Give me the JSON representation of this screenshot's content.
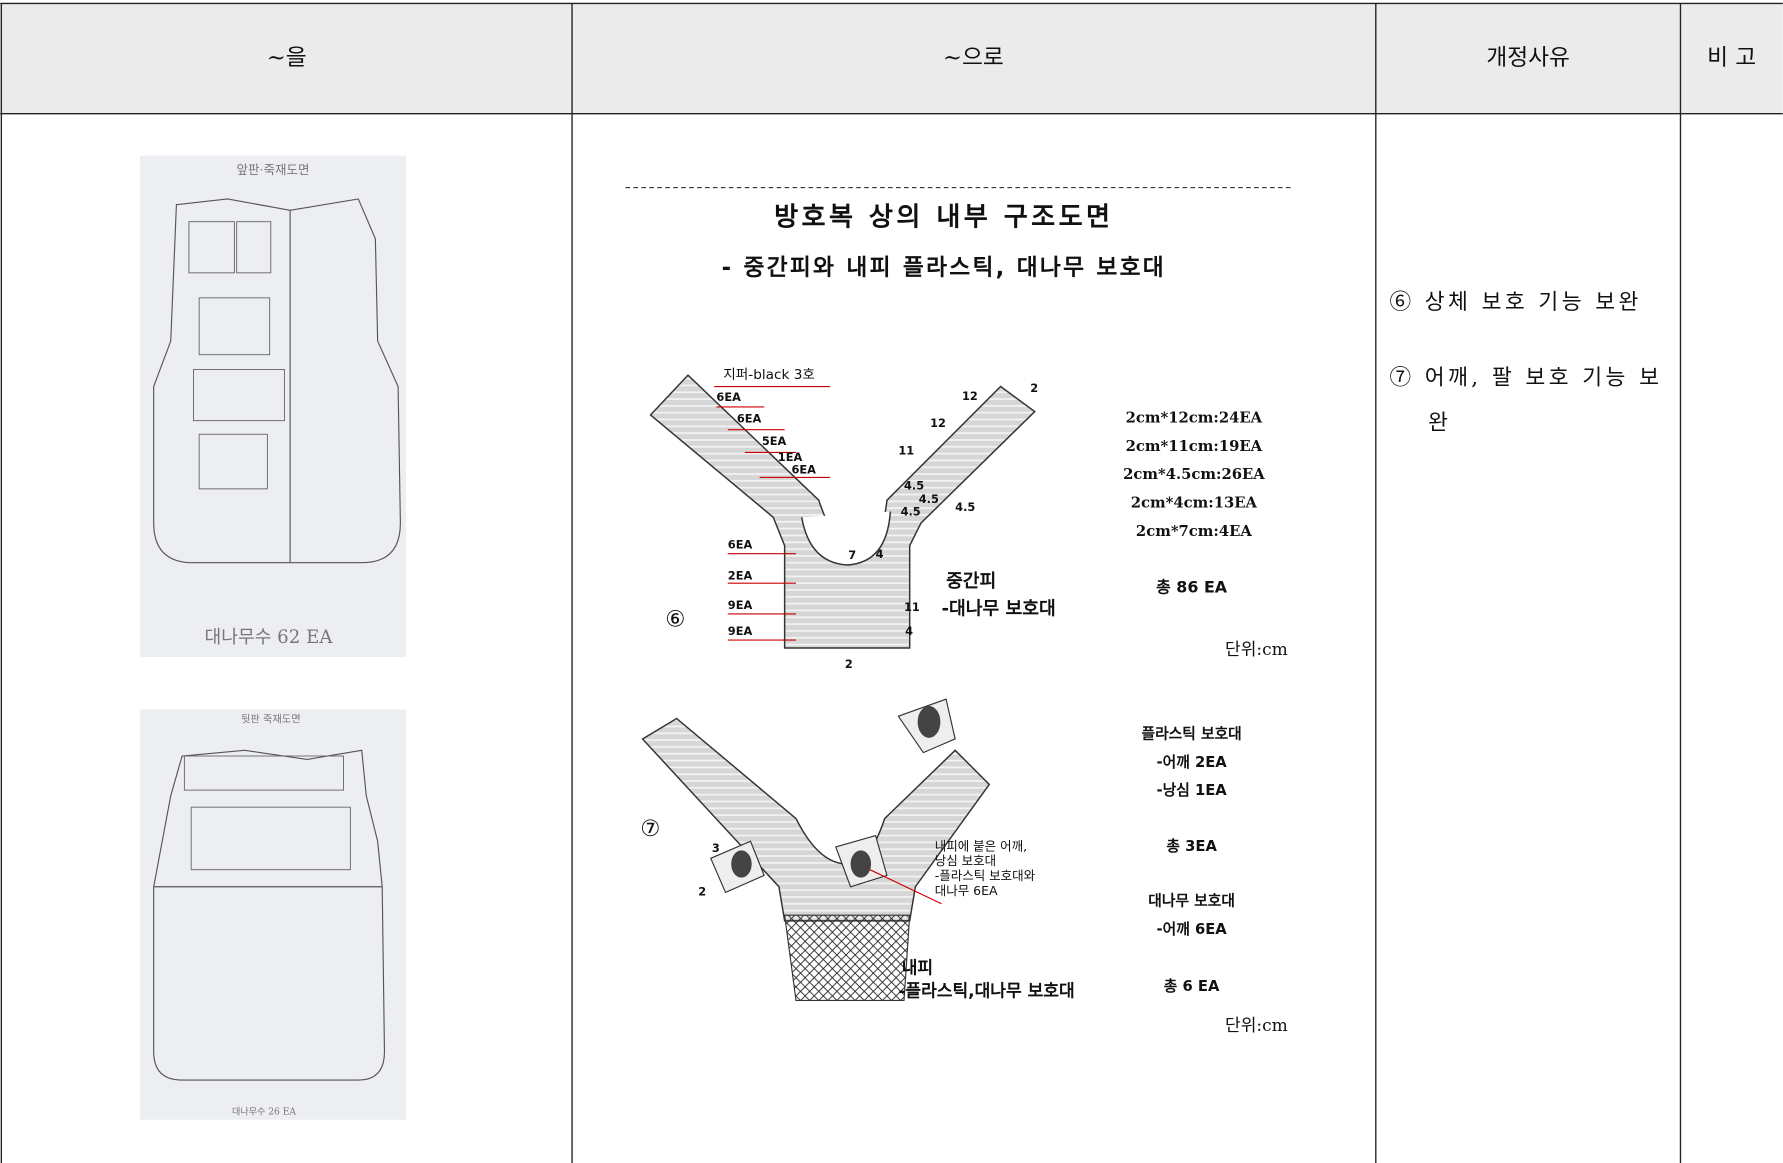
{
  "table": {
    "headers": [
      "~을",
      "~으로",
      "개정사유",
      "비 고"
    ]
  },
  "before": {
    "front": {
      "caption": "앞판·죽재도면",
      "count": "대나무수 62 EA"
    },
    "back": {
      "caption": "뒷판 죽재도면",
      "count": "대나무수 26 EA"
    }
  },
  "after": {
    "title": "방호복 상의 내부 구조도면",
    "subtitle": "- 중간피와 내피 플라스틱, 대나무 보호대",
    "middle_layer": {
      "marker": "⑥",
      "zipper": "지퍼-black 3호",
      "counts": [
        "6EA",
        "6EA",
        "5EA",
        "1EA",
        "6EA",
        "6EA",
        "2EA",
        "9EA",
        "9EA"
      ],
      "dims": [
        "12",
        "12",
        "11",
        "4.5",
        "4.5",
        "4.5",
        "4.5",
        "7",
        "4",
        "11",
        "4",
        "2",
        "2"
      ],
      "name": "중간피",
      "part": "-대나무 보호대",
      "specs": [
        "2cm*12cm:24EA",
        "2cm*11cm:19EA",
        "2cm*4.5cm:26EA",
        "2cm*4cm:13EA",
        "2cm*7cm:4EA"
      ],
      "total": "총 86 EA",
      "unit": "단위:cm"
    },
    "inner_layer": {
      "marker": "⑦",
      "dims": [
        "3",
        "2"
      ],
      "note": [
        "내피에 붙은 어깨,",
        "낭심 보호대",
        "-플라스틱 보호대와",
        "대나무 6EA"
      ],
      "name": "내피",
      "part": "-플라스틱,대나무 보호대",
      "plastic": [
        "플라스틱 보호대",
        "-어깨 2EA",
        "-낭심 1EA"
      ],
      "plastic_total": "총 3EA",
      "bamboo": [
        "대나무 보호대",
        "-어깨 6EA"
      ],
      "bamboo_total": "총 6 EA",
      "unit": "단위:cm"
    }
  },
  "reasons": [
    "⑥ 상체 보호 기능 보완",
    "⑦ 어깨, 팔 보호 기능 보완"
  ]
}
